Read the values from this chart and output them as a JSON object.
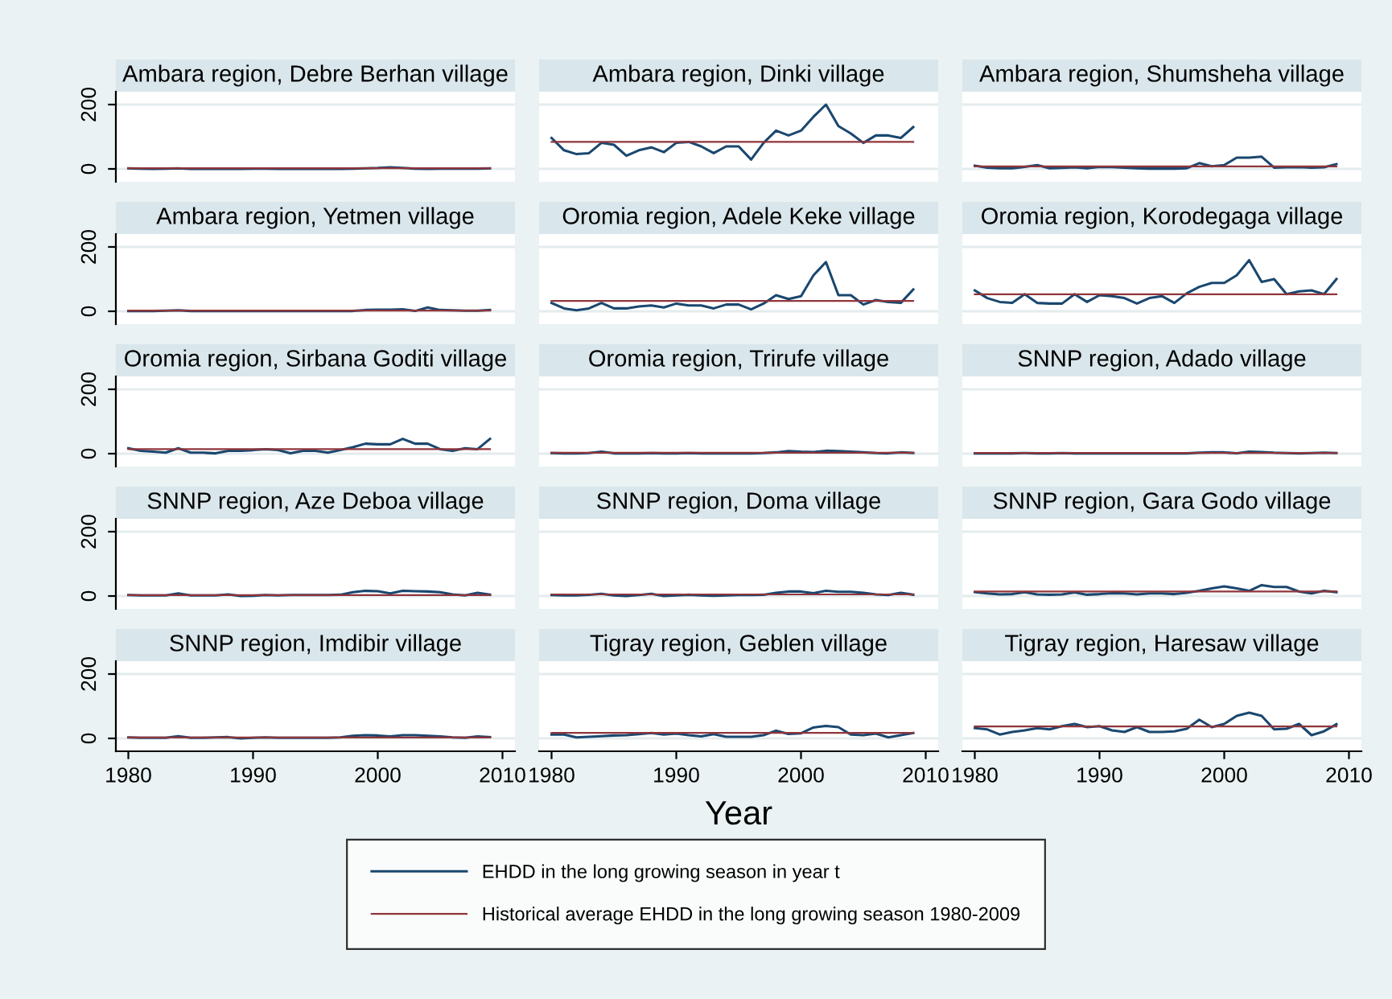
{
  "chart_data": [
    {
      "type": "line",
      "title": "Ambara region, Debre Berhan village",
      "xlim": [
        1979,
        2011
      ],
      "xticks": [
        1980,
        1990,
        2000,
        2010
      ],
      "ylim": [
        -40,
        240
      ],
      "yticks": [
        0,
        200
      ],
      "grid": "y",
      "tick_labels": "y",
      "x": [
        1980,
        1981,
        1982,
        1983,
        1984,
        1985,
        1986,
        1987,
        1988,
        1989,
        1990,
        1991,
        1992,
        1993,
        1994,
        1995,
        1996,
        1997,
        1998,
        1999,
        2000,
        2001,
        2002,
        2003,
        2004,
        2005,
        2006,
        2007,
        2008,
        2009
      ],
      "series": [
        {
          "color": "#1a476f",
          "values": [
            2,
            1,
            0,
            1,
            2,
            0,
            0,
            0,
            0,
            0,
            1,
            1,
            0,
            0,
            0,
            0,
            0,
            0,
            1,
            2,
            3,
            5,
            3,
            1,
            0,
            1,
            1,
            1,
            1,
            2
          ]
        },
        {
          "color": "#90353b",
          "values": [
            2,
            2,
            2,
            2,
            2,
            2,
            2,
            2,
            2,
            2,
            2,
            2,
            2,
            2,
            2,
            2,
            2,
            2,
            2,
            2,
            2,
            2,
            2,
            2,
            2,
            2,
            2,
            2,
            2,
            2
          ]
        }
      ]
    },
    {
      "type": "line",
      "title": "Ambara region, Dinki village",
      "xlim": [
        1979,
        2011
      ],
      "xticks": [
        1980,
        1990,
        2000,
        2010
      ],
      "ylim": [
        -40,
        240
      ],
      "yticks": [
        0,
        200
      ],
      "grid": "y",
      "tick_labels": false,
      "x": [
        1980,
        1981,
        1982,
        1983,
        1984,
        1985,
        1986,
        1987,
        1988,
        1989,
        1990,
        1991,
        1992,
        1993,
        1994,
        1995,
        1996,
        1997,
        1998,
        1999,
        2000,
        2001,
        2002,
        2003,
        2004,
        2005,
        2006,
        2007,
        2008,
        2009
      ],
      "series": [
        {
          "color": "#1a476f",
          "values": [
            96,
            58,
            46,
            49,
            81,
            75,
            41,
            58,
            67,
            52,
            81,
            84,
            70,
            49,
            70,
            70,
            29,
            81,
            119,
            104,
            119,
            162,
            200,
            133,
            110,
            81,
            104,
            104,
            96,
            130
          ]
        },
        {
          "color": "#90353b",
          "values": [
            84,
            84,
            84,
            84,
            84,
            84,
            84,
            84,
            84,
            84,
            84,
            84,
            84,
            84,
            84,
            84,
            84,
            84,
            84,
            84,
            84,
            84,
            84,
            84,
            84,
            84,
            84,
            84,
            84,
            84
          ]
        }
      ]
    },
    {
      "type": "line",
      "title": "Ambara region, Shumsheha village",
      "xlim": [
        1979,
        2011
      ],
      "xticks": [
        1980,
        1990,
        2000,
        2010
      ],
      "ylim": [
        -40,
        240
      ],
      "yticks": [
        0,
        200
      ],
      "grid": "y",
      "tick_labels": false,
      "x": [
        1980,
        1981,
        1982,
        1983,
        1984,
        1985,
        1986,
        1987,
        1988,
        1989,
        1990,
        1991,
        1992,
        1993,
        1994,
        1995,
        1996,
        1997,
        1998,
        1999,
        2000,
        2001,
        2002,
        2003,
        2004,
        2005,
        2006,
        2007,
        2008,
        2009
      ],
      "series": [
        {
          "color": "#1a476f",
          "values": [
            10,
            4,
            2,
            2,
            6,
            12,
            2,
            3,
            5,
            2,
            6,
            6,
            4,
            2,
            1,
            1,
            1,
            2,
            18,
            8,
            12,
            35,
            35,
            38,
            4,
            5,
            6,
            4,
            5,
            15
          ]
        },
        {
          "color": "#90353b",
          "values": [
            8,
            8,
            8,
            8,
            8,
            8,
            8,
            8,
            8,
            8,
            8,
            8,
            8,
            8,
            8,
            8,
            8,
            8,
            8,
            8,
            8,
            8,
            8,
            8,
            8,
            8,
            8,
            8,
            8,
            8
          ]
        }
      ]
    },
    {
      "type": "line",
      "title": "Ambara region, Yetmen village",
      "xlim": [
        1979,
        2011
      ],
      "xticks": [
        1980,
        1990,
        2000,
        2010
      ],
      "ylim": [
        -40,
        240
      ],
      "yticks": [
        0,
        200
      ],
      "grid": "y",
      "tick_labels": "y",
      "x": [
        1980,
        1981,
        1982,
        1983,
        1984,
        1985,
        1986,
        1987,
        1988,
        1989,
        1990,
        1991,
        1992,
        1993,
        1994,
        1995,
        1996,
        1997,
        1998,
        1999,
        2000,
        2001,
        2002,
        2003,
        2004,
        2005,
        2006,
        2007,
        2008,
        2009
      ],
      "series": [
        {
          "color": "#1a476f",
          "values": [
            1,
            1,
            1,
            2,
            3,
            1,
            1,
            1,
            1,
            1,
            1,
            1,
            1,
            1,
            1,
            1,
            1,
            1,
            1,
            4,
            5,
            5,
            6,
            1,
            12,
            4,
            3,
            2,
            2,
            4
          ]
        },
        {
          "color": "#90353b",
          "values": [
            2,
            2,
            2,
            2,
            2,
            2,
            2,
            2,
            2,
            2,
            2,
            2,
            2,
            2,
            2,
            2,
            2,
            2,
            2,
            2,
            2,
            2,
            2,
            2,
            2,
            2,
            2,
            2,
            2,
            2
          ]
        }
      ]
    },
    {
      "type": "line",
      "title": "Oromia region, Adele Keke village",
      "xlim": [
        1979,
        2011
      ],
      "xticks": [
        1980,
        1990,
        2000,
        2010
      ],
      "ylim": [
        -40,
        240
      ],
      "yticks": [
        0,
        200
      ],
      "grid": "y",
      "tick_labels": false,
      "x": [
        1980,
        1981,
        1982,
        1983,
        1984,
        1985,
        1986,
        1987,
        1988,
        1989,
        1990,
        1991,
        1992,
        1993,
        1994,
        1995,
        1996,
        1997,
        1998,
        1999,
        2000,
        2001,
        2002,
        2003,
        2004,
        2005,
        2006,
        2007,
        2008,
        2009
      ],
      "series": [
        {
          "color": "#1a476f",
          "values": [
            26,
            9,
            3,
            9,
            26,
            9,
            9,
            15,
            18,
            12,
            24,
            18,
            18,
            9,
            21,
            21,
            6,
            24,
            50,
            38,
            47,
            112,
            153,
            50,
            50,
            21,
            35,
            29,
            26,
            68
          ]
        },
        {
          "color": "#90353b",
          "values": [
            32,
            32,
            32,
            32,
            32,
            32,
            32,
            32,
            32,
            32,
            32,
            32,
            32,
            32,
            32,
            32,
            32,
            32,
            32,
            32,
            32,
            32,
            32,
            32,
            32,
            32,
            32,
            32,
            32,
            32
          ]
        }
      ]
    },
    {
      "type": "line",
      "title": "Oromia region, Korodegaga village",
      "xlim": [
        1979,
        2011
      ],
      "xticks": [
        1980,
        1990,
        2000,
        2010
      ],
      "ylim": [
        -40,
        240
      ],
      "yticks": [
        0,
        200
      ],
      "grid": "y",
      "tick_labels": false,
      "x": [
        1980,
        1981,
        1982,
        1983,
        1984,
        1985,
        1986,
        1987,
        1988,
        1989,
        1990,
        1991,
        1992,
        1993,
        1994,
        1995,
        1996,
        1997,
        1998,
        1999,
        2000,
        2001,
        2002,
        2003,
        2004,
        2005,
        2006,
        2007,
        2008,
        2009
      ],
      "series": [
        {
          "color": "#1a476f",
          "values": [
            65,
            41,
            29,
            26,
            53,
            26,
            24,
            24,
            53,
            29,
            50,
            47,
            41,
            24,
            41,
            47,
            26,
            56,
            76,
            88,
            88,
            112,
            159,
            91,
            100,
            53,
            62,
            65,
            53,
            100
          ]
        },
        {
          "color": "#90353b",
          "values": [
            53,
            53,
            53,
            53,
            53,
            53,
            53,
            53,
            53,
            53,
            53,
            53,
            53,
            53,
            53,
            53,
            53,
            53,
            53,
            53,
            53,
            53,
            53,
            53,
            53,
            53,
            53,
            53,
            53,
            53
          ]
        }
      ]
    },
    {
      "type": "line",
      "title": "Oromia region, Sirbana Goditi village",
      "xlim": [
        1979,
        2011
      ],
      "xticks": [
        1980,
        1990,
        2000,
        2010
      ],
      "ylim": [
        -40,
        240
      ],
      "yticks": [
        0,
        200
      ],
      "grid": "y",
      "tick_labels": "y",
      "x": [
        1980,
        1981,
        1982,
        1983,
        1984,
        1985,
        1986,
        1987,
        1988,
        1989,
        1990,
        1991,
        1992,
        1993,
        1994,
        1995,
        1996,
        1997,
        1998,
        1999,
        2000,
        2001,
        2002,
        2003,
        2004,
        2005,
        2006,
        2007,
        2008,
        2009
      ],
      "series": [
        {
          "color": "#1a476f",
          "values": [
            17,
            9,
            6,
            3,
            17,
            3,
            3,
            1,
            9,
            9,
            11,
            14,
            11,
            1,
            9,
            9,
            3,
            11,
            20,
            31,
            29,
            29,
            46,
            31,
            31,
            14,
            9,
            17,
            14,
            46
          ]
        },
        {
          "color": "#90353b",
          "values": [
            14,
            14,
            14,
            14,
            14,
            14,
            14,
            14,
            14,
            14,
            14,
            14,
            14,
            14,
            14,
            14,
            14,
            14,
            14,
            14,
            14,
            14,
            14,
            14,
            14,
            14,
            14,
            14,
            14,
            14
          ]
        }
      ]
    },
    {
      "type": "line",
      "title": "Oromia region, Trirufe village",
      "xlim": [
        1979,
        2011
      ],
      "xticks": [
        1980,
        1990,
        2000,
        2010
      ],
      "ylim": [
        -40,
        240
      ],
      "yticks": [
        0,
        200
      ],
      "grid": "y",
      "tick_labels": false,
      "x": [
        1980,
        1981,
        1982,
        1983,
        1984,
        1985,
        1986,
        1987,
        1988,
        1989,
        1990,
        1991,
        1992,
        1993,
        1994,
        1995,
        1996,
        1997,
        1998,
        1999,
        2000,
        2001,
        2002,
        2003,
        2004,
        2005,
        2006,
        2007,
        2008,
        2009
      ],
      "series": [
        {
          "color": "#1a476f",
          "values": [
            2,
            1,
            1,
            2,
            6,
            1,
            1,
            1,
            2,
            1,
            1,
            2,
            1,
            1,
            1,
            1,
            1,
            2,
            4,
            8,
            6,
            5,
            9,
            8,
            6,
            4,
            2,
            1,
            4,
            2
          ]
        },
        {
          "color": "#90353b",
          "values": [
            3,
            3,
            3,
            3,
            3,
            3,
            3,
            3,
            3,
            3,
            3,
            3,
            3,
            3,
            3,
            3,
            3,
            3,
            3,
            3,
            3,
            3,
            3,
            3,
            3,
            3,
            3,
            3,
            3,
            3
          ]
        }
      ]
    },
    {
      "type": "line",
      "title": "SNNP region, Adado village",
      "xlim": [
        1979,
        2011
      ],
      "xticks": [
        1980,
        1990,
        2000,
        2010
      ],
      "ylim": [
        -40,
        240
      ],
      "yticks": [
        0,
        200
      ],
      "grid": "y",
      "tick_labels": false,
      "x": [
        1980,
        1981,
        1982,
        1983,
        1984,
        1985,
        1986,
        1987,
        1988,
        1989,
        1990,
        1991,
        1992,
        1993,
        1994,
        1995,
        1996,
        1997,
        1998,
        1999,
        2000,
        2001,
        2002,
        2003,
        2004,
        2005,
        2006,
        2007,
        2008,
        2009
      ],
      "series": [
        {
          "color": "#1a476f",
          "values": [
            1,
            1,
            1,
            1,
            2,
            1,
            1,
            2,
            1,
            1,
            1,
            1,
            1,
            1,
            1,
            1,
            1,
            1,
            3,
            4,
            4,
            1,
            6,
            5,
            3,
            2,
            1,
            2,
            3,
            2
          ]
        },
        {
          "color": "#90353b",
          "values": [
            2,
            2,
            2,
            2,
            2,
            2,
            2,
            2,
            2,
            2,
            2,
            2,
            2,
            2,
            2,
            2,
            2,
            2,
            2,
            2,
            2,
            2,
            2,
            2,
            2,
            2,
            2,
            2,
            2,
            2
          ]
        }
      ]
    },
    {
      "type": "line",
      "title": "SNNP region, Aze Deboa village",
      "xlim": [
        1979,
        2011
      ],
      "xticks": [
        1980,
        1990,
        2000,
        2010
      ],
      "ylim": [
        -40,
        240
      ],
      "yticks": [
        0,
        200
      ],
      "grid": "y",
      "tick_labels": "y",
      "x": [
        1980,
        1981,
        1982,
        1983,
        1984,
        1985,
        1986,
        1987,
        1988,
        1989,
        1990,
        1991,
        1992,
        1993,
        1994,
        1995,
        1996,
        1997,
        1998,
        1999,
        2000,
        2001,
        2002,
        2003,
        2004,
        2005,
        2006,
        2007,
        2008,
        2009
      ],
      "series": [
        {
          "color": "#1a476f",
          "values": [
            3,
            2,
            2,
            2,
            8,
            2,
            2,
            2,
            5,
            0,
            1,
            3,
            2,
            3,
            3,
            3,
            3,
            4,
            12,
            16,
            15,
            8,
            16,
            15,
            14,
            12,
            5,
            2,
            10,
            4
          ]
        },
        {
          "color": "#90353b",
          "values": [
            3,
            3,
            3,
            3,
            3,
            3,
            3,
            3,
            3,
            3,
            3,
            3,
            3,
            3,
            3,
            3,
            3,
            3,
            3,
            3,
            3,
            3,
            3,
            3,
            3,
            3,
            3,
            3,
            3,
            3
          ]
        }
      ]
    },
    {
      "type": "line",
      "title": "SNNP region, Doma village",
      "xlim": [
        1979,
        2011
      ],
      "xticks": [
        1980,
        1990,
        2000,
        2010
      ],
      "ylim": [
        -40,
        240
      ],
      "yticks": [
        0,
        200
      ],
      "grid": "y",
      "tick_labels": false,
      "x": [
        1980,
        1981,
        1982,
        1983,
        1984,
        1985,
        1986,
        1987,
        1988,
        1989,
        1990,
        1991,
        1992,
        1993,
        1994,
        1995,
        1996,
        1997,
        1998,
        1999,
        2000,
        2001,
        2002,
        2003,
        2004,
        2005,
        2006,
        2007,
        2008,
        2009
      ],
      "series": [
        {
          "color": "#1a476f",
          "values": [
            3,
            2,
            2,
            4,
            7,
            2,
            0,
            3,
            7,
            0,
            2,
            4,
            2,
            1,
            2,
            3,
            3,
            4,
            10,
            14,
            14,
            9,
            16,
            13,
            13,
            10,
            5,
            3,
            10,
            4
          ]
        },
        {
          "color": "#90353b",
          "values": [
            5,
            5,
            5,
            5,
            5,
            5,
            5,
            5,
            5,
            5,
            5,
            5,
            5,
            5,
            5,
            5,
            5,
            5,
            5,
            5,
            5,
            5,
            5,
            5,
            5,
            5,
            5,
            5,
            5,
            5
          ]
        }
      ]
    },
    {
      "type": "line",
      "title": "SNNP region, Gara Godo village",
      "xlim": [
        1979,
        2011
      ],
      "xticks": [
        1980,
        1990,
        2000,
        2010
      ],
      "ylim": [
        -40,
        240
      ],
      "yticks": [
        0,
        200
      ],
      "grid": "y",
      "tick_labels": false,
      "x": [
        1980,
        1981,
        1982,
        1983,
        1984,
        1985,
        1986,
        1987,
        1988,
        1989,
        1990,
        1991,
        1992,
        1993,
        1994,
        1995,
        1996,
        1997,
        1998,
        1999,
        2000,
        2001,
        2002,
        2003,
        2004,
        2005,
        2006,
        2007,
        2008,
        2009
      ],
      "series": [
        {
          "color": "#1a476f",
          "values": [
            12,
            8,
            5,
            6,
            12,
            5,
            4,
            5,
            11,
            4,
            6,
            9,
            8,
            5,
            8,
            8,
            6,
            10,
            16,
            24,
            30,
            24,
            16,
            34,
            28,
            28,
            14,
            8,
            16,
            12
          ]
        },
        {
          "color": "#90353b",
          "values": [
            14,
            14,
            14,
            14,
            14,
            14,
            14,
            14,
            14,
            14,
            14,
            14,
            14,
            14,
            14,
            14,
            14,
            14,
            14,
            14,
            14,
            14,
            14,
            14,
            14,
            14,
            14,
            14,
            14,
            14
          ]
        }
      ]
    },
    {
      "type": "line",
      "title": "SNNP region, Imdibir village",
      "xlim": [
        1979,
        2011
      ],
      "xticks": [
        1980,
        1990,
        2000,
        2010
      ],
      "ylim": [
        -40,
        240
      ],
      "yticks": [
        0,
        200
      ],
      "grid": "y",
      "x": [
        1980,
        1981,
        1982,
        1983,
        1984,
        1985,
        1986,
        1987,
        1988,
        1989,
        1990,
        1991,
        1992,
        1993,
        1994,
        1995,
        1996,
        1997,
        1998,
        1999,
        2000,
        2001,
        2002,
        2003,
        2004,
        2005,
        2006,
        2007,
        2008,
        2009
      ],
      "series": [
        {
          "color": "#1a476f",
          "values": [
            3,
            2,
            2,
            2,
            7,
            2,
            2,
            3,
            4,
            0,
            2,
            3,
            2,
            2,
            2,
            2,
            2,
            3,
            8,
            10,
            9,
            6,
            10,
            10,
            8,
            6,
            3,
            2,
            6,
            4
          ]
        },
        {
          "color": "#90353b",
          "values": [
            3,
            3,
            3,
            3,
            3,
            3,
            3,
            3,
            3,
            3,
            3,
            3,
            3,
            3,
            3,
            3,
            3,
            3,
            3,
            3,
            3,
            3,
            3,
            3,
            3,
            3,
            3,
            3,
            3,
            3
          ]
        }
      ]
    },
    {
      "type": "line",
      "title": "Tigray region, Geblen village",
      "xlabel": "Year",
      "legend": "bottom",
      "xlim": [
        1979,
        2011
      ],
      "xticks": [
        1980,
        1990,
        2000,
        2010
      ],
      "ylim": [
        -40,
        240
      ],
      "yticks": [
        0,
        200
      ],
      "grid": "y",
      "tick_labels": "x",
      "x": [
        1980,
        1981,
        1982,
        1983,
        1984,
        1985,
        1986,
        1987,
        1988,
        1989,
        1990,
        1991,
        1992,
        1993,
        1994,
        1995,
        1996,
        1997,
        1998,
        1999,
        2000,
        2001,
        2002,
        2003,
        2004,
        2005,
        2006,
        2007,
        2008,
        2009
      ],
      "series": [
        {
          "name": "EHDD in the long growing season in year t",
          "color": "#1a476f",
          "values": [
            12,
            12,
            3,
            5,
            7,
            9,
            10,
            13,
            17,
            12,
            15,
            10,
            6,
            13,
            5,
            5,
            5,
            10,
            24,
            14,
            16,
            34,
            39,
            35,
            12,
            10,
            15,
            3,
            10,
            17
          ]
        },
        {
          "name": "Historical average EHDD in the long growing season 1980-2009",
          "color": "#90353b",
          "values": [
            17,
            17,
            17,
            17,
            17,
            17,
            17,
            17,
            17,
            17,
            17,
            17,
            17,
            17,
            17,
            17,
            17,
            17,
            17,
            17,
            17,
            17,
            17,
            17,
            17,
            17,
            17,
            17,
            17,
            17
          ]
        }
      ]
    },
    {
      "type": "line",
      "title": "Tigray region, Haresaw village",
      "xlim": [
        1979,
        2011
      ],
      "xticks": [
        1980,
        1990,
        2000,
        2010
      ],
      "ylim": [
        -40,
        240
      ],
      "yticks": [
        0,
        200
      ],
      "grid": "y",
      "tick_labels": "x",
      "x": [
        1980,
        1981,
        1982,
        1983,
        1984,
        1985,
        1986,
        1987,
        1988,
        1989,
        1990,
        1991,
        1992,
        1993,
        1994,
        1995,
        1996,
        1997,
        1998,
        1999,
        2000,
        2001,
        2002,
        2003,
        2004,
        2005,
        2006,
        2007,
        2008,
        2009
      ],
      "series": [
        {
          "color": "#1a476f",
          "values": [
            32,
            28,
            12,
            20,
            25,
            32,
            28,
            38,
            45,
            35,
            38,
            25,
            20,
            35,
            20,
            20,
            22,
            30,
            58,
            35,
            45,
            70,
            80,
            70,
            28,
            30,
            45,
            10,
            22,
            44
          ]
        },
        {
          "color": "#90353b",
          "values": [
            37,
            37,
            37,
            37,
            37,
            37,
            37,
            37,
            37,
            37,
            37,
            37,
            37,
            37,
            37,
            37,
            37,
            37,
            37,
            37,
            37,
            37,
            37,
            37,
            37,
            37,
            37,
            37,
            37,
            37
          ]
        }
      ]
    }
  ]
}
